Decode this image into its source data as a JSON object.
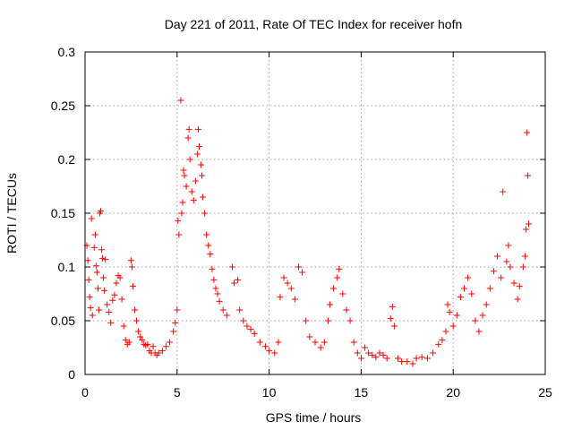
{
  "chart_data": {
    "type": "scatter",
    "title": "Day 221 of 2011, Rate Of TEC Index for receiver hofn",
    "xlabel": "GPS time / hours",
    "ylabel": "ROTI / TECUs",
    "xlim": [
      0,
      25
    ],
    "ylim": [
      0,
      0.3
    ],
    "xticks": [
      0,
      5,
      10,
      15,
      20,
      25
    ],
    "xtick_labels": [
      "0",
      "5",
      "10",
      "15",
      "20",
      "25"
    ],
    "yticks": [
      0,
      0.05,
      0.1,
      0.15,
      0.2,
      0.25,
      0.3
    ],
    "ytick_labels": [
      "0",
      "0.05",
      "0.1",
      "0.15",
      "0.2",
      "0.25",
      "0.3"
    ],
    "grid": true,
    "marker": "+",
    "color": "#ff0000",
    "series": [
      {
        "points": [
          [
            0.1,
            0.12
          ],
          [
            0.15,
            0.106
          ],
          [
            0.2,
            0.088
          ],
          [
            0.25,
            0.072
          ],
          [
            0.3,
            0.062
          ],
          [
            0.35,
            0.145
          ],
          [
            0.4,
            0.055
          ],
          [
            0.5,
            0.118
          ],
          [
            0.55,
            0.13
          ],
          [
            0.6,
            0.101
          ],
          [
            0.65,
            0.095
          ],
          [
            0.7,
            0.08
          ],
          [
            0.75,
            0.06
          ],
          [
            0.8,
            0.15
          ],
          [
            0.85,
            0.152
          ],
          [
            0.9,
            0.116
          ],
          [
            0.95,
            0.108
          ],
          [
            1.0,
            0.09
          ],
          [
            1.05,
            0.078
          ],
          [
            1.1,
            0.107
          ],
          [
            1.2,
            0.065
          ],
          [
            1.3,
            0.058
          ],
          [
            1.4,
            0.048
          ],
          [
            1.5,
            0.069
          ],
          [
            1.6,
            0.074
          ],
          [
            1.7,
            0.085
          ],
          [
            1.8,
            0.092
          ],
          [
            1.9,
            0.09
          ],
          [
            2.0,
            0.07
          ],
          [
            2.1,
            0.045
          ],
          [
            2.2,
            0.032
          ],
          [
            2.3,
            0.028
          ],
          [
            2.4,
            0.03
          ],
          [
            2.5,
            0.106
          ],
          [
            2.55,
            0.1
          ],
          [
            2.6,
            0.082
          ],
          [
            2.7,
            0.06
          ],
          [
            2.8,
            0.05
          ],
          [
            2.9,
            0.04
          ],
          [
            3.0,
            0.035
          ],
          [
            3.1,
            0.032
          ],
          [
            3.2,
            0.028
          ],
          [
            3.3,
            0.027
          ],
          [
            3.4,
            0.028
          ],
          [
            3.5,
            0.022
          ],
          [
            3.6,
            0.02
          ],
          [
            3.7,
            0.026
          ],
          [
            3.8,
            0.02
          ],
          [
            3.9,
            0.018
          ],
          [
            4.0,
            0.02
          ],
          [
            4.2,
            0.022
          ],
          [
            4.4,
            0.026
          ],
          [
            4.6,
            0.03
          ],
          [
            4.8,
            0.04
          ],
          [
            4.9,
            0.048
          ],
          [
            5.0,
            0.06
          ],
          [
            5.05,
            0.143
          ],
          [
            5.1,
            0.13
          ],
          [
            5.2,
            0.255
          ],
          [
            5.25,
            0.15
          ],
          [
            5.3,
            0.16
          ],
          [
            5.35,
            0.19
          ],
          [
            5.4,
            0.185
          ],
          [
            5.5,
            0.175
          ],
          [
            5.6,
            0.22
          ],
          [
            5.65,
            0.228
          ],
          [
            5.7,
            0.2
          ],
          [
            5.8,
            0.17
          ],
          [
            5.9,
            0.162
          ],
          [
            6.0,
            0.18
          ],
          [
            6.1,
            0.205
          ],
          [
            6.15,
            0.228
          ],
          [
            6.2,
            0.212
          ],
          [
            6.3,
            0.195
          ],
          [
            6.35,
            0.185
          ],
          [
            6.4,
            0.165
          ],
          [
            6.5,
            0.15
          ],
          [
            6.6,
            0.13
          ],
          [
            6.7,
            0.12
          ],
          [
            6.8,
            0.112
          ],
          [
            6.9,
            0.098
          ],
          [
            7.0,
            0.088
          ],
          [
            7.1,
            0.08
          ],
          [
            7.2,
            0.075
          ],
          [
            7.3,
            0.068
          ],
          [
            7.5,
            0.06
          ],
          [
            7.7,
            0.055
          ],
          [
            8.0,
            0.1
          ],
          [
            8.1,
            0.085
          ],
          [
            8.3,
            0.088
          ],
          [
            8.4,
            0.06
          ],
          [
            8.6,
            0.05
          ],
          [
            8.8,
            0.045
          ],
          [
            9.0,
            0.042
          ],
          [
            9.2,
            0.038
          ],
          [
            9.5,
            0.03
          ],
          [
            9.8,
            0.026
          ],
          [
            10.0,
            0.022
          ],
          [
            10.3,
            0.02
          ],
          [
            10.5,
            0.03
          ],
          [
            10.6,
            0.072
          ],
          [
            10.8,
            0.09
          ],
          [
            11.0,
            0.085
          ],
          [
            11.2,
            0.08
          ],
          [
            11.4,
            0.07
          ],
          [
            11.6,
            0.1
          ],
          [
            11.8,
            0.095
          ],
          [
            12.0,
            0.05
          ],
          [
            12.2,
            0.035
          ],
          [
            12.5,
            0.03
          ],
          [
            12.8,
            0.025
          ],
          [
            13.0,
            0.03
          ],
          [
            13.2,
            0.05
          ],
          [
            13.3,
            0.065
          ],
          [
            13.5,
            0.08
          ],
          [
            13.7,
            0.09
          ],
          [
            13.8,
            0.098
          ],
          [
            14.0,
            0.075
          ],
          [
            14.2,
            0.06
          ],
          [
            14.4,
            0.05
          ],
          [
            14.6,
            0.03
          ],
          [
            14.8,
            0.02
          ],
          [
            15.0,
            0.015
          ],
          [
            15.2,
            0.025
          ],
          [
            15.4,
            0.02
          ],
          [
            15.6,
            0.018
          ],
          [
            15.8,
            0.016
          ],
          [
            16.0,
            0.02
          ],
          [
            16.2,
            0.018
          ],
          [
            16.4,
            0.015
          ],
          [
            16.6,
            0.052
          ],
          [
            16.7,
            0.063
          ],
          [
            16.8,
            0.045
          ],
          [
            17.0,
            0.015
          ],
          [
            17.2,
            0.012
          ],
          [
            17.5,
            0.012
          ],
          [
            17.8,
            0.01
          ],
          [
            18.0,
            0.015
          ],
          [
            18.3,
            0.016
          ],
          [
            18.6,
            0.015
          ],
          [
            18.9,
            0.02
          ],
          [
            19.2,
            0.028
          ],
          [
            19.4,
            0.032
          ],
          [
            19.6,
            0.04
          ],
          [
            19.7,
            0.065
          ],
          [
            19.8,
            0.058
          ],
          [
            20.0,
            0.045
          ],
          [
            20.2,
            0.055
          ],
          [
            20.4,
            0.072
          ],
          [
            20.6,
            0.08
          ],
          [
            20.8,
            0.09
          ],
          [
            21.0,
            0.075
          ],
          [
            21.2,
            0.05
          ],
          [
            21.4,
            0.04
          ],
          [
            21.6,
            0.055
          ],
          [
            21.8,
            0.065
          ],
          [
            22.0,
            0.08
          ],
          [
            22.2,
            0.096
          ],
          [
            22.4,
            0.11
          ],
          [
            22.6,
            0.09
          ],
          [
            22.7,
            0.17
          ],
          [
            22.9,
            0.105
          ],
          [
            23.0,
            0.12
          ],
          [
            23.1,
            0.1
          ],
          [
            23.3,
            0.085
          ],
          [
            23.5,
            0.07
          ],
          [
            23.6,
            0.082
          ],
          [
            23.8,
            0.1
          ],
          [
            23.9,
            0.11
          ],
          [
            23.95,
            0.135
          ],
          [
            24.0,
            0.225
          ],
          [
            24.05,
            0.185
          ],
          [
            24.1,
            0.14
          ]
        ]
      }
    ]
  }
}
